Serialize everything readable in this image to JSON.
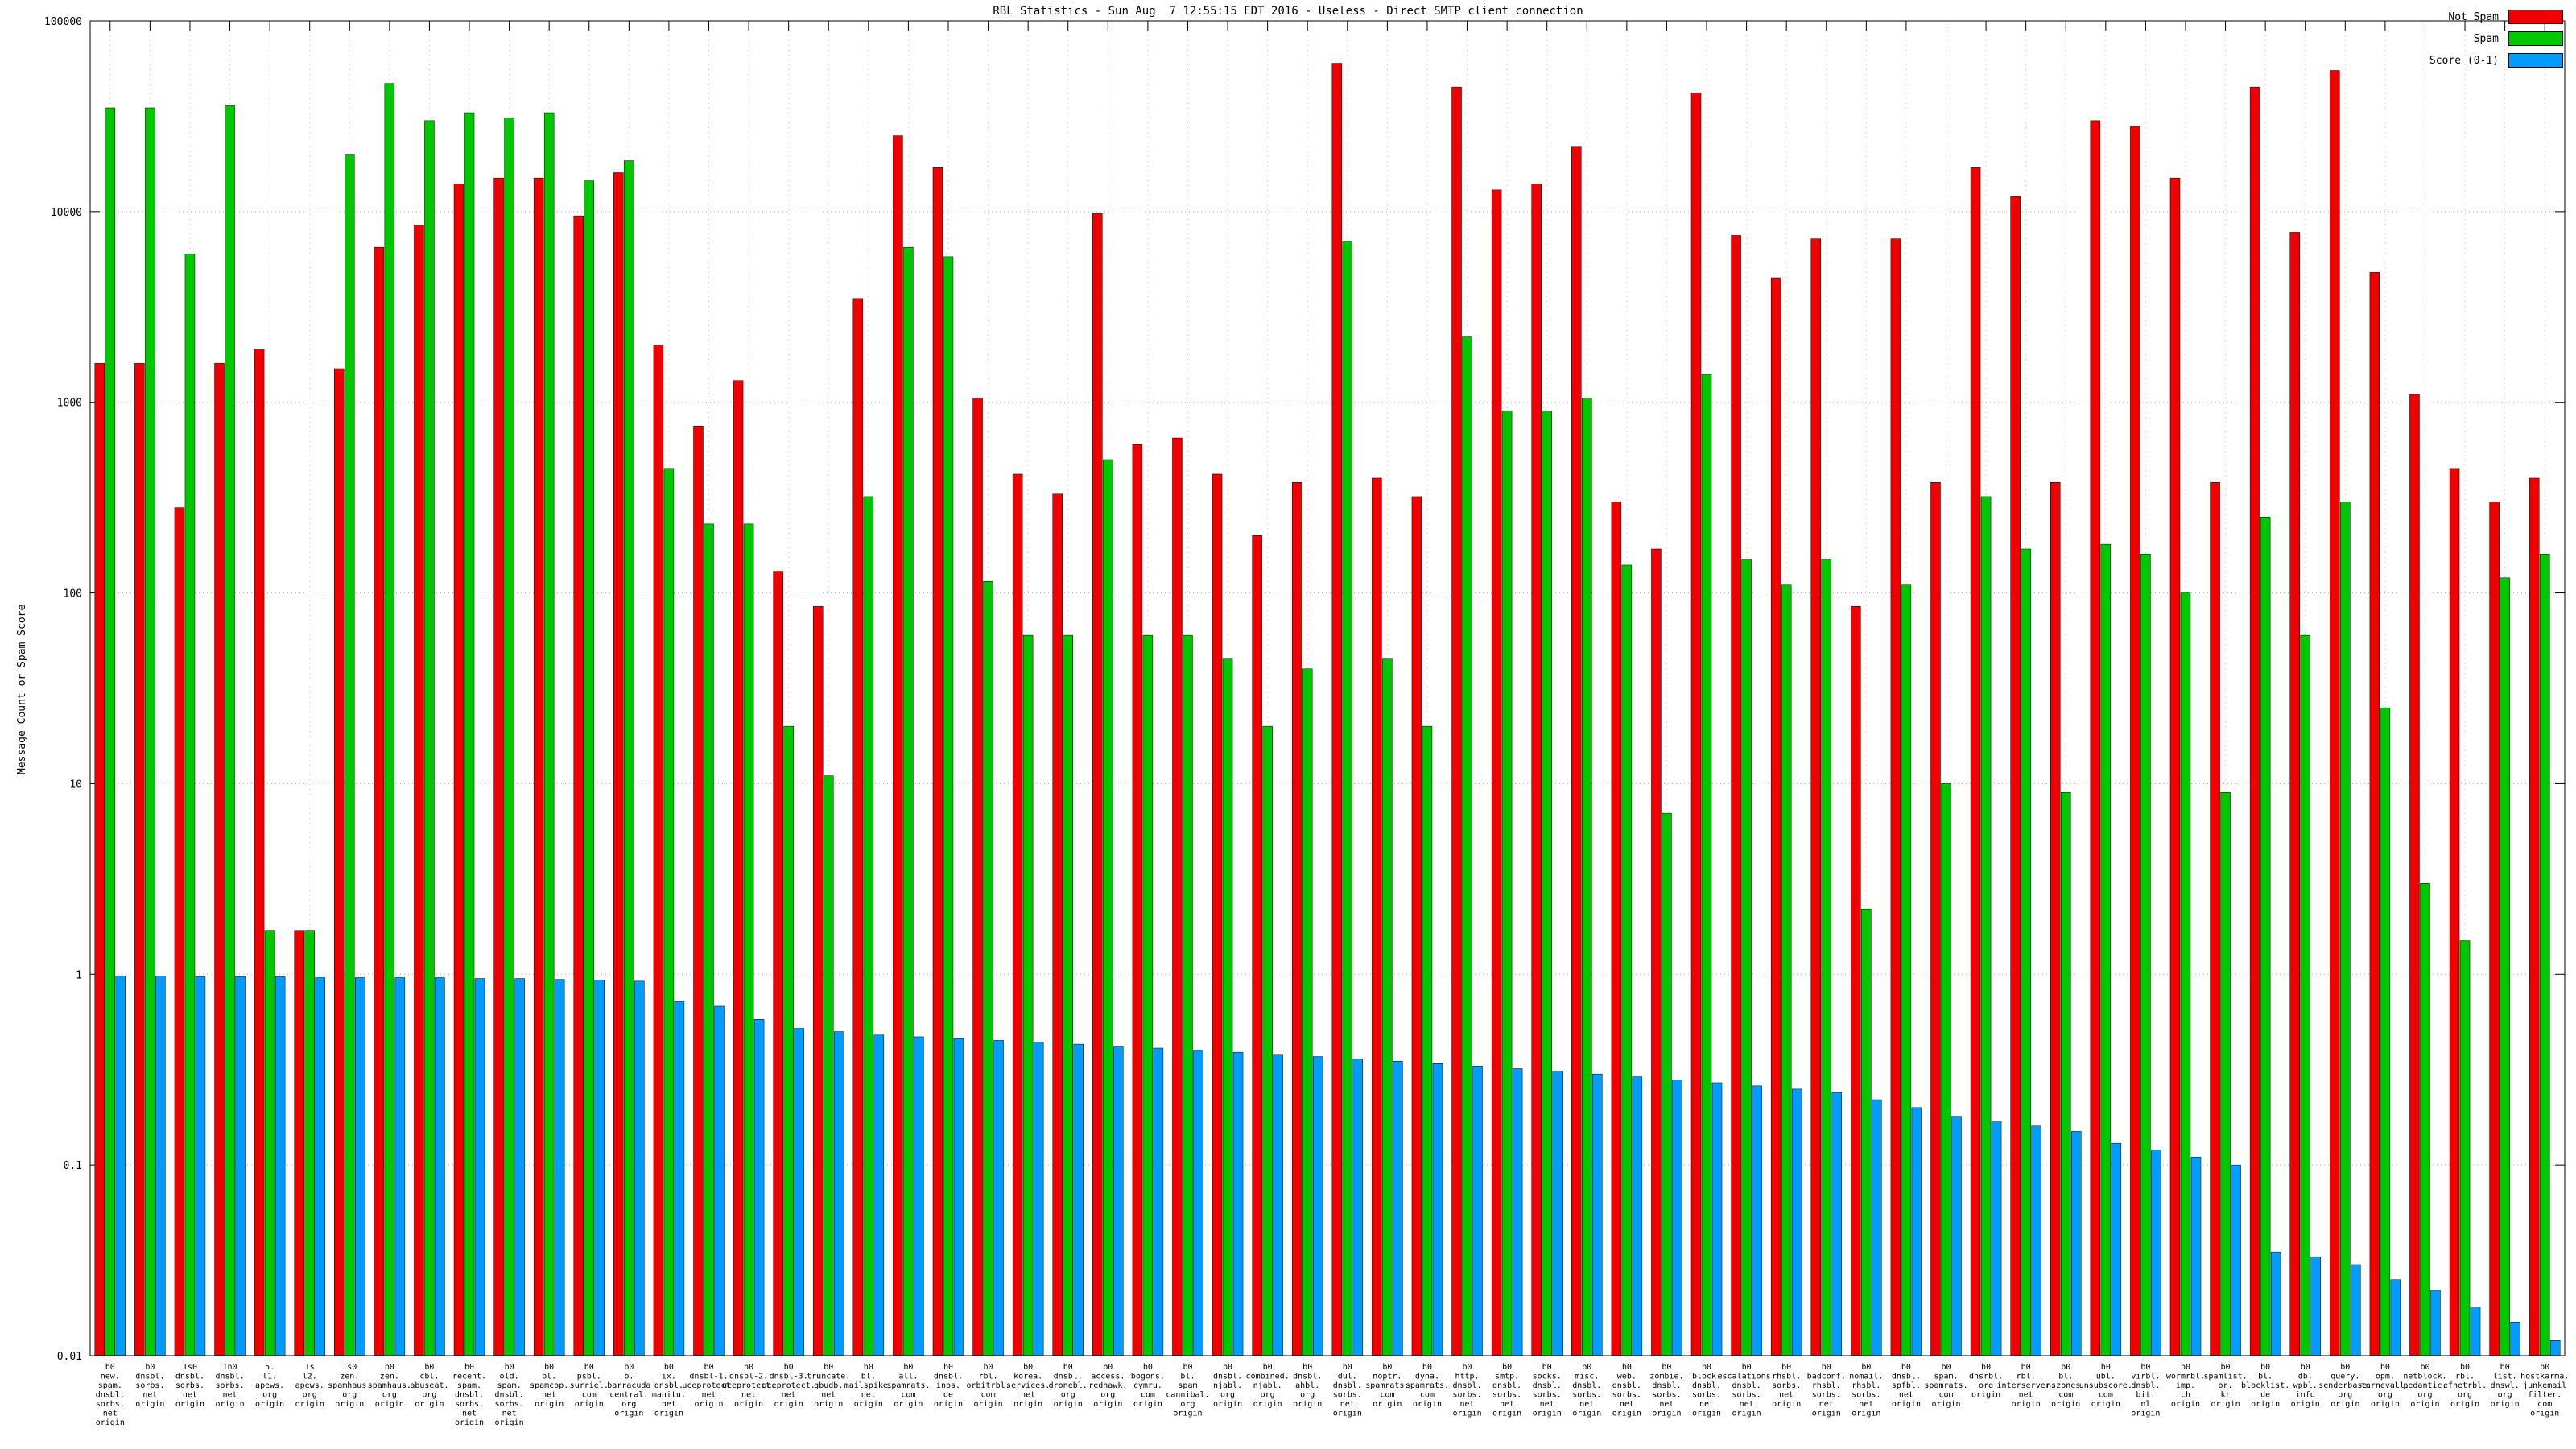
{
  "title": "RBL Statistics - Sun Aug  7 12:55:15 EDT 2016 - Useless - Direct SMTP client connection",
  "chart_data": {
    "type": "bar",
    "title": "RBL Statistics - Sun Aug  7 12:55:15 EDT 2016 - Useless - Direct SMTP client connection",
    "ylabel": "Message Count or Spam Score",
    "xlabel": "",
    "y_scale": "log",
    "ylim": [
      0.01,
      100000
    ],
    "y_ticks": [
      "100000",
      "10000",
      "1000",
      "100",
      "10",
      "1",
      "0.1",
      "0.01"
    ],
    "grid": true,
    "legend_position": "top-right",
    "series": [
      {
        "name": "Not Spam",
        "color": "#f00000",
        "values": [
          1600,
          1600,
          280,
          1600,
          1900,
          1.7,
          1500,
          6500,
          8500,
          14000,
          15000,
          15000,
          9500,
          16000,
          2000,
          750,
          1300,
          130,
          85,
          3500,
          25000,
          17000,
          1050,
          420,
          330,
          9800,
          600,
          650,
          420,
          200,
          380,
          60000,
          400,
          320,
          45000,
          13000,
          14000,
          22000,
          300,
          170,
          42000,
          7500,
          4500,
          7200,
          85,
          7200,
          380,
          17000,
          12000,
          380,
          30000,
          28000,
          15000,
          380,
          45000,
          7800,
          55000,
          4800,
          1100,
          450,
          300,
          400
        ]
      },
      {
        "name": "Spam",
        "color": "#00c800",
        "values": [
          35000,
          35000,
          6000,
          36000,
          1.7,
          1.7,
          20000,
          47000,
          30000,
          33000,
          31000,
          33000,
          14500,
          18500,
          450,
          230,
          230,
          20,
          11,
          320,
          6500,
          5800,
          115,
          60,
          60,
          500,
          60,
          60,
          45,
          20,
          40,
          7000,
          45,
          20,
          2200,
          900,
          900,
          1050,
          140,
          7,
          1400,
          150,
          110,
          150,
          2.2,
          110,
          10,
          320,
          170,
          9,
          180,
          160,
          100,
          9,
          250,
          60,
          300,
          25,
          3,
          1.5,
          120,
          160
        ]
      },
      {
        "name": "Score (0-1)",
        "color": "#009cff",
        "values": [
          0.98,
          0.98,
          0.97,
          0.97,
          0.97,
          0.96,
          0.96,
          0.96,
          0.96,
          0.95,
          0.95,
          0.94,
          0.93,
          0.92,
          0.72,
          0.68,
          0.58,
          0.52,
          0.5,
          0.48,
          0.47,
          0.46,
          0.45,
          0.44,
          0.43,
          0.42,
          0.41,
          0.4,
          0.39,
          0.38,
          0.37,
          0.36,
          0.35,
          0.34,
          0.33,
          0.32,
          0.31,
          0.3,
          0.29,
          0.28,
          0.27,
          0.26,
          0.25,
          0.24,
          0.22,
          0.2,
          0.18,
          0.17,
          0.16,
          0.15,
          0.13,
          0.12,
          0.11,
          0.1,
          0.035,
          0.033,
          0.03,
          0.025,
          0.022,
          0.018,
          0.015,
          0.012
        ]
      }
    ],
    "categories": [
      [
        "b0",
        "new.",
        "spam.",
        "dnsbl.",
        "sorbs.",
        "net",
        "origin"
      ],
      [
        "b0",
        "dnsbl.",
        "sorbs.",
        "net",
        "origin"
      ],
      [
        "1s0",
        "dnsbl.",
        "sorbs.",
        "net",
        "origin"
      ],
      [
        "1n0",
        "dnsbl.",
        "sorbs.",
        "net",
        "origin"
      ],
      [
        "5.",
        "l1.",
        "apews.",
        "org",
        "origin"
      ],
      [
        "1s",
        "l2.",
        "apews.",
        "org",
        "origin"
      ],
      [
        "1s0",
        "zen.",
        "spamhaus.",
        "org",
        "origin"
      ],
      [
        "b0",
        "zen.",
        "spamhaus.",
        "org",
        "origin"
      ],
      [
        "b0",
        "cbl.",
        "abuseat.",
        "org",
        "origin"
      ],
      [
        "b0",
        "recent.",
        "spam.",
        "dnsbl.",
        "sorbs.",
        "net",
        "origin"
      ],
      [
        "b0",
        "old.",
        "spam.",
        "dnsbl.",
        "sorbs.",
        "net",
        "origin"
      ],
      [
        "b0",
        "bl.",
        "spamcop.",
        "net",
        "origin"
      ],
      [
        "b0",
        "psbl.",
        "surriel.",
        "com",
        "origin"
      ],
      [
        "b0",
        "b.",
        "barracuda",
        "central.",
        "org",
        "origin"
      ],
      [
        "b0",
        "ix.",
        "dnsbl.",
        "manitu.",
        "net",
        "origin"
      ],
      [
        "b0",
        "dnsbl-1.",
        "uceprotect.",
        "net",
        "origin"
      ],
      [
        "b0",
        "dnsbl-2.",
        "uceprotect.",
        "net",
        "origin"
      ],
      [
        "b0",
        "dnsbl-3.",
        "uceprotect.",
        "net",
        "origin"
      ],
      [
        "b0",
        "truncate.",
        "gbudb.",
        "net",
        "origin"
      ],
      [
        "b0",
        "bl.",
        "mailspike.",
        "net",
        "origin"
      ],
      [
        "b0",
        "all.",
        "spamrats.",
        "com",
        "origin"
      ],
      [
        "b0",
        "dnsbl.",
        "inps.",
        "de",
        "origin"
      ],
      [
        "b0",
        "rbl.",
        "orbitrbl.",
        "com",
        "origin"
      ],
      [
        "b0",
        "korea.",
        "services.",
        "net",
        "origin"
      ],
      [
        "b0",
        "dnsbl.",
        "dronebl.",
        "org",
        "origin"
      ],
      [
        "b0",
        "access.",
        "redhawk.",
        "org",
        "origin"
      ],
      [
        "b0",
        "bogons.",
        "cymru.",
        "com",
        "origin"
      ],
      [
        "b0",
        "bl.",
        "spam",
        "cannibal.",
        "org",
        "origin"
      ],
      [
        "b0",
        "dnsbl.",
        "njabl.",
        "org",
        "origin"
      ],
      [
        "b0",
        "combined.",
        "njabl.",
        "org",
        "origin"
      ],
      [
        "b0",
        "dnsbl.",
        "ahbl.",
        "org",
        "origin"
      ],
      [
        "b0",
        "dul.",
        "dnsbl.",
        "sorbs.",
        "net",
        "origin"
      ],
      [
        "b0",
        "noptr.",
        "spamrats.",
        "com",
        "origin"
      ],
      [
        "b0",
        "dyna.",
        "spamrats.",
        "com",
        "origin"
      ],
      [
        "b0",
        "http.",
        "dnsbl.",
        "sorbs.",
        "net",
        "origin"
      ],
      [
        "b0",
        "smtp.",
        "dnsbl.",
        "sorbs.",
        "net",
        "origin"
      ],
      [
        "b0",
        "socks.",
        "dnsbl.",
        "sorbs.",
        "net",
        "origin"
      ],
      [
        "b0",
        "misc.",
        "dnsbl.",
        "sorbs.",
        "net",
        "origin"
      ],
      [
        "b0",
        "web.",
        "dnsbl.",
        "sorbs.",
        "net",
        "origin"
      ],
      [
        "b0",
        "zombie.",
        "dnsbl.",
        "sorbs.",
        "net",
        "origin"
      ],
      [
        "b0",
        "block.",
        "dnsbl.",
        "sorbs.",
        "net",
        "origin"
      ],
      [
        "b0",
        "escalations.",
        "dnsbl.",
        "sorbs.",
        "net",
        "origin"
      ],
      [
        "b0",
        "rhsbl.",
        "sorbs.",
        "net",
        "origin"
      ],
      [
        "b0",
        "badconf.",
        "rhsbl.",
        "sorbs.",
        "net",
        "origin"
      ],
      [
        "b0",
        "nomail.",
        "rhsbl.",
        "sorbs.",
        "net",
        "origin"
      ],
      [
        "b0",
        "dnsbl.",
        "spfbl.",
        "net",
        "origin"
      ],
      [
        "b0",
        "spam.",
        "spamrats.",
        "com",
        "origin"
      ],
      [
        "b0",
        "dnsrbl.",
        "org",
        "origin"
      ],
      [
        "b0",
        "rbl.",
        "interserver.",
        "net",
        "origin"
      ],
      [
        "b0",
        "bl.",
        "nszones.",
        "com",
        "origin"
      ],
      [
        "b0",
        "ubl.",
        "unsubscore.",
        "com",
        "origin"
      ],
      [
        "b0",
        "virbl.",
        "dnsbl.",
        "bit.",
        "nl",
        "origin"
      ],
      [
        "b0",
        "wormrbl.",
        "imp.",
        "ch",
        "origin"
      ],
      [
        "b0",
        "spamlist.",
        "or.",
        "kr",
        "origin"
      ],
      [
        "b0",
        "bl.",
        "blocklist.",
        "de",
        "origin"
      ],
      [
        "b0",
        "db.",
        "wpbl.",
        "info",
        "origin"
      ],
      [
        "b0",
        "query.",
        "senderbase.",
        "org",
        "origin"
      ],
      [
        "b0",
        "opm.",
        "tornevall.",
        "org",
        "origin"
      ],
      [
        "b0",
        "netblock.",
        "pedantic.",
        "org",
        "origin"
      ],
      [
        "b0",
        "rbl.",
        "efnetrbl.",
        "org",
        "origin"
      ],
      [
        "b0",
        "list.",
        "dnswl.",
        "org",
        "origin"
      ],
      [
        "b0",
        "hostkarma.",
        "junkemail",
        "filter.",
        "com",
        "origin"
      ]
    ]
  }
}
